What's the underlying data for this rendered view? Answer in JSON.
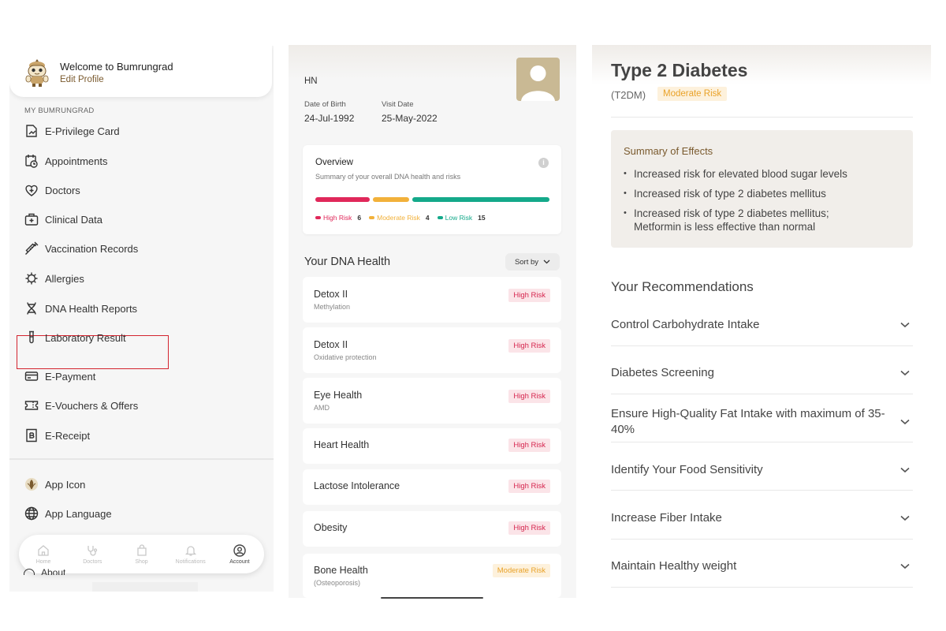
{
  "menu": {
    "welcome": "Welcome to Bumrungrad",
    "edit_profile": "Edit Profile",
    "section_label": "MY BUMRUNGRAD",
    "items": [
      {
        "label": "E-Privilege Card",
        "icon": "card-icon"
      },
      {
        "label": "Appointments",
        "icon": "calendar-clock-icon"
      },
      {
        "label": "Doctors",
        "icon": "heart-plus-icon"
      },
      {
        "label": "Clinical Data",
        "icon": "medical-kit-icon"
      },
      {
        "label": "Vaccination Records",
        "icon": "syringe-icon"
      },
      {
        "label": "Allergies",
        "icon": "virus-icon"
      },
      {
        "label": "DNA Health Reports",
        "icon": "dna-icon"
      },
      {
        "label": "Laboratory Result",
        "icon": "test-tube-icon"
      },
      {
        "label": "E-Payment",
        "icon": "credit-card-icon"
      },
      {
        "label": "E-Vouchers & Offers",
        "icon": "ticket-icon"
      },
      {
        "label": "E-Receipt",
        "icon": "receipt-icon"
      },
      {
        "label": "App Icon",
        "icon": "app-logo-icon"
      },
      {
        "label": "App Language",
        "icon": "globe-icon"
      }
    ],
    "about": "About",
    "tabs": [
      {
        "label": "Home",
        "icon": "home-icon",
        "active": false
      },
      {
        "label": "Doctors",
        "icon": "stethoscope-icon",
        "active": false
      },
      {
        "label": "Shop",
        "icon": "shopping-bag-icon",
        "active": false
      },
      {
        "label": "Notifications",
        "icon": "bell-icon",
        "active": false
      },
      {
        "label": "Account",
        "icon": "account-icon",
        "active": true
      }
    ]
  },
  "dna": {
    "hn_label": "HN",
    "dob_label": "Date of Birth",
    "dob_value": "24-Jul-1992",
    "visit_label": "Visit Date",
    "visit_value": "25-May-2022",
    "overview": {
      "title": "Overview",
      "subtitle": "Summary of your overall DNA health and risks",
      "info_icon": "i",
      "high_label": "High Risk",
      "high_count": "6",
      "moderate_label": "Moderate Risk",
      "moderate_count": "4",
      "low_label": "Low Risk",
      "low_count": "15"
    },
    "section_title": "Your DNA Health",
    "sort_label": "Sort by",
    "cards": [
      {
        "title": "Detox II",
        "subtitle": "Methylation",
        "badge": "High Risk",
        "level": "high"
      },
      {
        "title": "Detox II",
        "subtitle": "Oxidative protection",
        "badge": "High Risk",
        "level": "high"
      },
      {
        "title": "Eye Health",
        "subtitle": "AMD",
        "badge": "High Risk",
        "level": "high"
      },
      {
        "title": "Heart Health",
        "subtitle": "",
        "badge": "High Risk",
        "level": "high"
      },
      {
        "title": "Lactose Intolerance",
        "subtitle": "",
        "badge": "High Risk",
        "level": "high"
      },
      {
        "title": "Obesity",
        "subtitle": "",
        "badge": "High Risk",
        "level": "high"
      },
      {
        "title": "Bone Health",
        "subtitle": "(Osteoporosis)",
        "badge": "Moderate Risk",
        "level": "moderate"
      }
    ]
  },
  "detail": {
    "title": "Type 2 Diabetes",
    "abbr": "(T2DM)",
    "badge": "Moderate Risk",
    "summary_title": "Summary of Effects",
    "summary_items": [
      "Increased risk for elevated blood sugar levels",
      "Increased risk of type 2 diabetes mellitus",
      "Increased risk of type 2 diabetes mellitus; Metformin is less effective than normal"
    ],
    "rec_title": "Your Recommendations",
    "recommendations": [
      "Control Carbohydrate Intake",
      "Diabetes Screening",
      "Ensure High-Quality Fat Intake with maximum of 35-40%",
      "Identify Your Food Sensitivity",
      "Increase Fiber Intake",
      "Maintain Healthy weight"
    ]
  },
  "colors": {
    "high": "#e0285a",
    "moderate": "#f2b13a",
    "low": "#14a98a",
    "brand_brown": "#7a5a2e",
    "highlight_red": "#d3232e"
  }
}
